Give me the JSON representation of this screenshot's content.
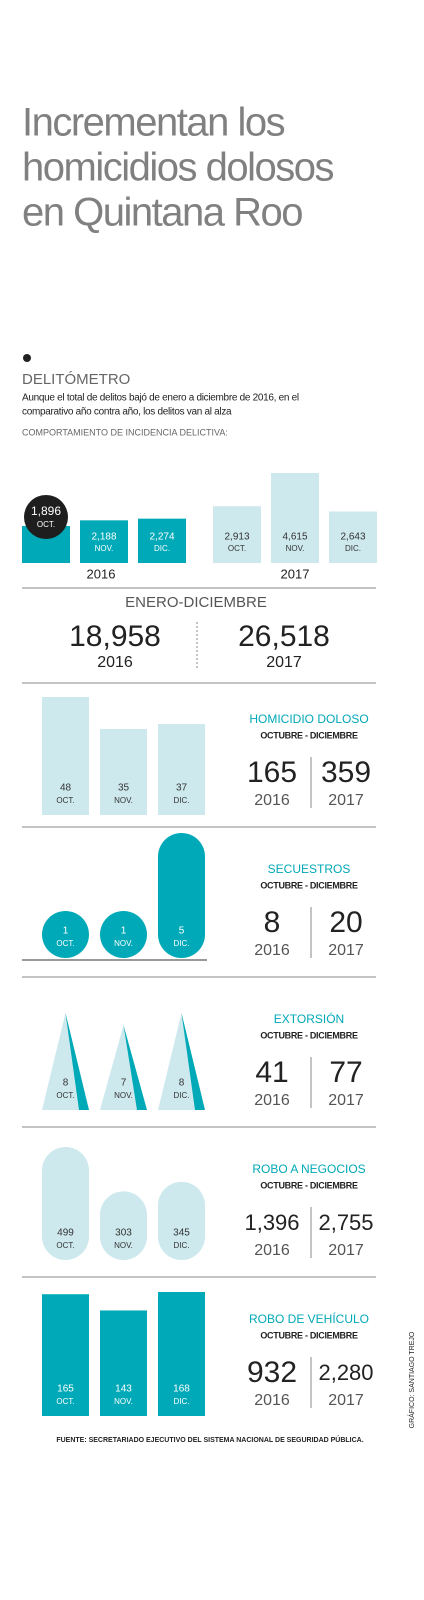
{
  "title": [
    "Incrementan los",
    "homicidios dolosos",
    "en Quintana Roo"
  ],
  "section": "DELITÓMETRO",
  "description": [
    "Aunque el total de delitos bajó de enero a diciembre de 2016, en el",
    "comparativo año contra año, los delitos van al alza"
  ],
  "chart_label": "COMPORTAMIENTO DE INCIDENCIA DELICTIVA:",
  "years": [
    "2016",
    "2017"
  ],
  "months": [
    "OCT.",
    "NOV.",
    "DIC."
  ],
  "monthly": {
    "values": [
      [
        1896,
        2188,
        2274
      ],
      [
        2913,
        4615,
        2643
      ]
    ],
    "value_labels": [
      [
        "1,896",
        "2,188",
        "2,274"
      ],
      [
        "2,913",
        "4,615",
        "2,643"
      ]
    ],
    "colors": [
      "#00a9b7",
      "#cde9ee"
    ]
  },
  "annual": {
    "title": "ENERO-DICIEMBRE",
    "values": [
      18958,
      26518
    ],
    "value_labels": [
      "18,958",
      "26,518"
    ]
  },
  "crimes": [
    {
      "name": "HOMICIDIO DOLOSO",
      "period": "OCTUBRE - DICIEMBRE",
      "shape": "bar",
      "color": "#cde9ee",
      "values": [
        48,
        35,
        37
      ],
      "totals": [
        165,
        359
      ]
    },
    {
      "name": "SECUESTROS",
      "period": "OCTUBRE - DICIEMBRE",
      "shape": "pill",
      "color": "#00a9b7",
      "values": [
        1,
        1,
        5
      ],
      "totals": [
        8,
        20
      ]
    },
    {
      "name": "EXTORSIÓN",
      "period": "OCTUBRE - DICIEMBRE",
      "shape": "spike",
      "color": "#cde9ee",
      "values": [
        8,
        7,
        8
      ],
      "totals": [
        41,
        77
      ]
    },
    {
      "name": "ROBO A NEGOCIOS",
      "period": "OCTUBRE - DICIEMBRE",
      "shape": "pill",
      "color": "#cde9ee",
      "values": [
        499,
        303,
        345
      ],
      "totals": [
        1396,
        2755
      ],
      "total_labels": [
        "1,396",
        "2,755"
      ]
    },
    {
      "name": "ROBO DE VEHÍCULO",
      "period": "OCTUBRE - DICIEMBRE",
      "shape": "bar",
      "color": "#00a9b7",
      "values": [
        165,
        143,
        168
      ],
      "totals": [
        932,
        2280
      ],
      "total_labels": [
        "932",
        "2,280"
      ]
    }
  ],
  "source": "FUENTE: SECRETARIADO EJECUTIVO DEL SISTEMA NACIONAL DE SEGURIDAD PÚBLICA.",
  "credit": "GRÁFICO: SANTIAGO TREJO"
}
